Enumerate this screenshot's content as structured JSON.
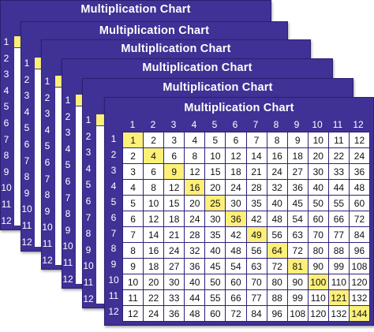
{
  "title": "Multiplication Chart",
  "size": 12,
  "back_sheet_numbers": [
    "1",
    "2",
    "3",
    "4",
    "5",
    "6",
    "7",
    "8",
    "9",
    "10",
    "11",
    "12"
  ],
  "colors": {
    "sheet": "#3f3195",
    "highlight": "#fdf078",
    "cell": "#ffffff"
  }
}
